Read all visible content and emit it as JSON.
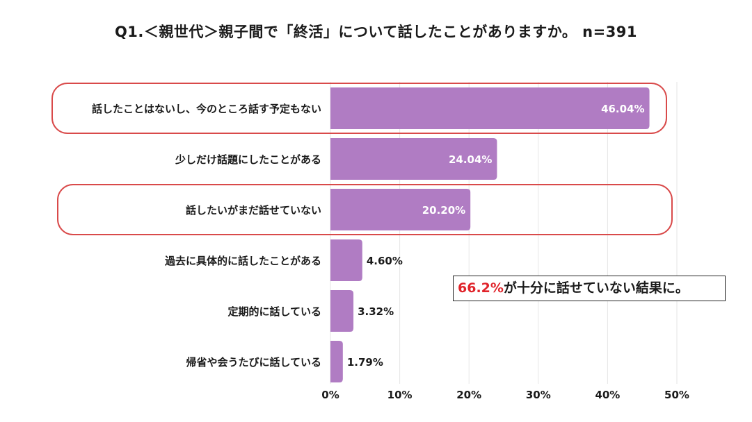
{
  "title": "Q1.＜親世代＞親子間で「終活」について話したことがありますか。 n=391",
  "callout": {
    "highlight": "66.2%",
    "text": "が十分に話せていない結果に。"
  },
  "colors": {
    "bar": "#b07cc3",
    "highlight_border": "#d94a4a",
    "grid": "#e6e6e6",
    "callout_highlight": "#e0242b"
  },
  "chart_data": {
    "type": "bar",
    "orientation": "horizontal",
    "categories": [
      "話したことはないし、今のところ話す予定もない",
      "少しだけ話題にしたことがある",
      "話したいがまだ話せていない",
      "過去に具体的に話したことがある",
      "定期的に話している",
      "帰省や会うたびに話している"
    ],
    "values": [
      46.04,
      24.04,
      20.2,
      4.6,
      3.32,
      1.79
    ],
    "value_labels": [
      "46.04%",
      "24.04%",
      "20.20%",
      "4.60%",
      "3.32%",
      "1.79%"
    ],
    "highlighted": [
      true,
      false,
      true,
      false,
      false,
      false
    ],
    "xlim": [
      0,
      50
    ],
    "xticks": [
      "0%",
      "10%",
      "20%",
      "30%",
      "40%",
      "50%"
    ],
    "xtick_values": [
      0,
      10,
      20,
      30,
      40,
      50
    ],
    "grid": true
  }
}
